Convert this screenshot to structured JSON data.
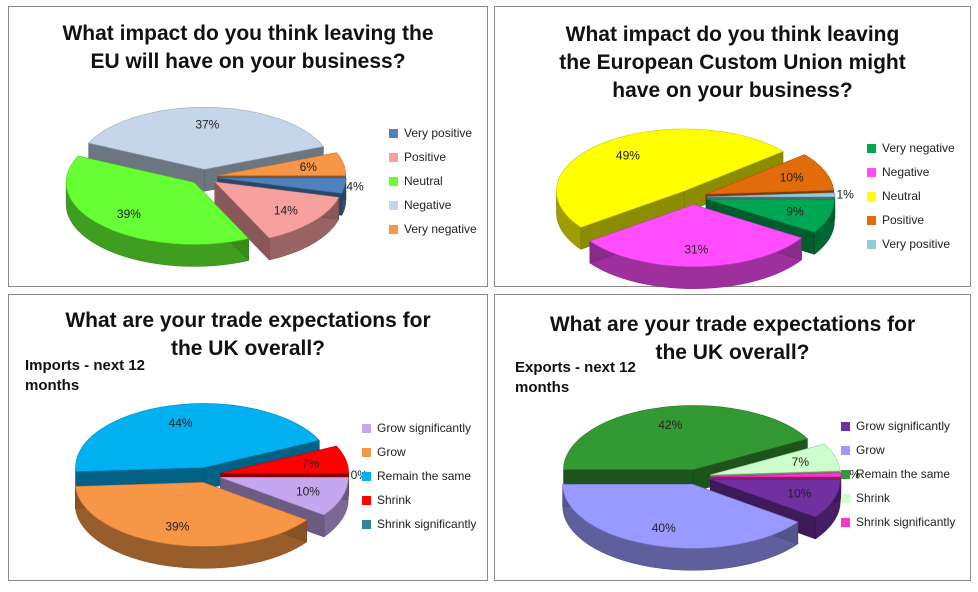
{
  "chart_data": [
    {
      "type": "pie",
      "title": "What impact do you think leaving the EU will have on your business?",
      "title_lines": [
        "What impact do you think leaving the",
        "EU will have on your business?"
      ],
      "categories": [
        "Very positive",
        "Positive",
        "Neutral",
        "Negative",
        "Very negative"
      ],
      "values": [
        4,
        14,
        39,
        37,
        6
      ],
      "value_labels": [
        "4%",
        "14%",
        "39%",
        "37%",
        "6%"
      ],
      "colors": [
        "#4f81bd",
        "#f7a0a0",
        "#66ff33",
        "#c5d6ea",
        "#f79646"
      ],
      "legend_position": "right",
      "style": "3d-exploded"
    },
    {
      "type": "pie",
      "title": "What impact do you think leaving the European Custom Union might have on your business?",
      "title_lines": [
        "What impact do you think leaving",
        "the European Custom Union might",
        "have on your business?"
      ],
      "categories": [
        "Very negative",
        "Negative",
        "Neutral",
        "Positive",
        "Very positive"
      ],
      "values": [
        9,
        31,
        49,
        10,
        1
      ],
      "value_labels": [
        "9%",
        "31%",
        "49%",
        "10%",
        "1%"
      ],
      "colors": [
        "#00a651",
        "#ff4dff",
        "#ffff00",
        "#e36c0a",
        "#93cddd"
      ],
      "legend_position": "right",
      "style": "3d-exploded"
    },
    {
      "type": "pie",
      "title": "What are your trade expectations for the UK overall?",
      "title_lines": [
        "What are your trade expectations for",
        "the UK overall?"
      ],
      "subtitle_lines": [
        "Imports - next 12",
        "months"
      ],
      "categories": [
        "Grow significantly",
        "Grow",
        "Remain the same",
        "Shrink",
        "Shrink significantly"
      ],
      "values": [
        10,
        39,
        44,
        7,
        0
      ],
      "value_labels": [
        "10%",
        "39%",
        "44%",
        "7%",
        "0%"
      ],
      "colors": [
        "#c5a7f0",
        "#f79646",
        "#00b0f0",
        "#ff0000",
        "#31859c"
      ],
      "legend_position": "right",
      "style": "3d-exploded"
    },
    {
      "type": "pie",
      "title": "What are your trade expectations for the UK overall?",
      "title_lines": [
        "What are your trade expectations for",
        "the UK overall?"
      ],
      "subtitle_lines": [
        "Exports - next 12",
        "months"
      ],
      "categories": [
        "Grow significantly",
        "Grow",
        "Remain the same",
        "Shrink",
        "Shrink significantly"
      ],
      "values": [
        10,
        40,
        42,
        7,
        1
      ],
      "value_labels": [
        "10%",
        "40%",
        "42%",
        "7%",
        "1%"
      ],
      "colors": [
        "#7030a0",
        "#9999ff",
        "#339933",
        "#ccffcc",
        "#ff33cc"
      ],
      "legend_position": "right",
      "style": "3d-exploded"
    }
  ]
}
